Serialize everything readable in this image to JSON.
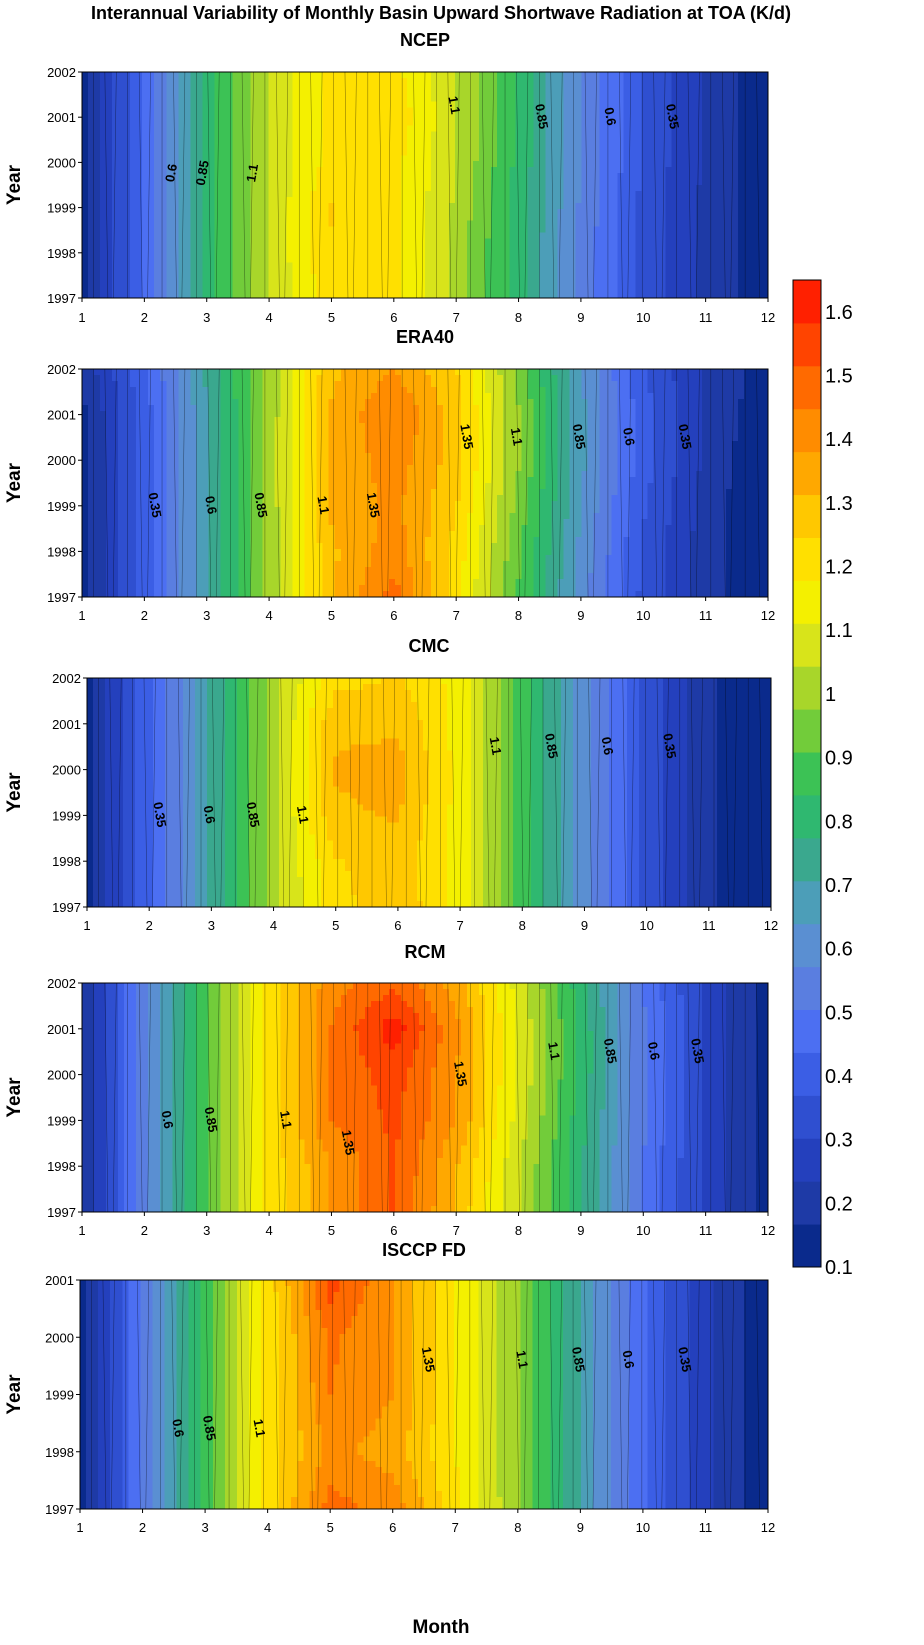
{
  "figure": {
    "title": "Interannual Variability of Monthly Basin Upward Shortwave Radiation at TOA (K/d)",
    "x_axis_label": "Month",
    "y_axis_label": "Year"
  },
  "colorbar": {
    "ticks": [
      "0.1",
      "0.2",
      "0.3",
      "0.4",
      "0.5",
      "0.6",
      "0.7",
      "0.8",
      "0.9",
      "1",
      "1.1",
      "1.2",
      "1.3",
      "1.4",
      "1.5",
      "1.6"
    ],
    "range": [
      0.1,
      1.65
    ],
    "colors": [
      "#0a2a8c",
      "#1e3aa6",
      "#2440bd",
      "#2f4fd0",
      "#3b5ee5",
      "#4c6ff2",
      "#5a7ee0",
      "#5a8fd2",
      "#4c9eb8",
      "#3aa88e",
      "#2fb870",
      "#3cc255",
      "#72cc3a",
      "#a8d62a",
      "#d8e41a",
      "#f4f000",
      "#ffe000",
      "#ffc800",
      "#ffa800",
      "#ff8c00",
      "#ff6a00",
      "#ff4400",
      "#ff2000"
    ]
  },
  "chart_data": [
    {
      "type": "heatmap",
      "title": "NCEP",
      "xlabel": "",
      "ylabel": "Year",
      "x_ticks": [
        "1",
        "2",
        "3",
        "4",
        "5",
        "6",
        "7",
        "8",
        "9",
        "10",
        "11",
        "12"
      ],
      "y_ticks": [
        "1997",
        "1998",
        "1999",
        "2000",
        "2001",
        "2002"
      ],
      "x": [
        1,
        2,
        3,
        4,
        5,
        6,
        7,
        8,
        9,
        10,
        11,
        12
      ],
      "y": [
        1997,
        1998,
        1999,
        2000,
        2001,
        2002
      ],
      "values": [
        [
          0.15,
          0.45,
          0.8,
          1.05,
          1.22,
          1.2,
          1.02,
          0.8,
          0.55,
          0.35,
          0.22,
          0.12
        ],
        [
          0.15,
          0.45,
          0.8,
          1.05,
          1.24,
          1.2,
          1.02,
          0.8,
          0.55,
          0.35,
          0.22,
          0.12
        ],
        [
          0.15,
          0.45,
          0.8,
          1.05,
          1.25,
          1.2,
          1.03,
          0.8,
          0.56,
          0.35,
          0.22,
          0.12
        ],
        [
          0.15,
          0.45,
          0.8,
          1.05,
          1.2,
          1.2,
          1.05,
          0.82,
          0.58,
          0.36,
          0.22,
          0.12
        ],
        [
          0.15,
          0.45,
          0.8,
          1.05,
          1.2,
          1.23,
          1.05,
          0.82,
          0.58,
          0.36,
          0.22,
          0.12
        ],
        [
          0.15,
          0.45,
          0.8,
          1.05,
          1.2,
          1.2,
          1.05,
          0.82,
          0.58,
          0.36,
          0.22,
          0.12
        ]
      ],
      "contour_labels": [
        "0.6",
        "0.85",
        "1.1",
        "1.1",
        "0.85",
        "0.6",
        "0.35"
      ]
    },
    {
      "type": "heatmap",
      "title": "ERA40",
      "xlabel": "",
      "ylabel": "Year",
      "x_ticks": [
        "1",
        "2",
        "3",
        "4",
        "5",
        "6",
        "7",
        "8",
        "9",
        "10",
        "11",
        "12"
      ],
      "y_ticks": [
        "1997",
        "1998",
        "1999",
        "2000",
        "2001",
        "2002"
      ],
      "x": [
        1,
        2,
        3,
        4,
        5,
        6,
        7,
        8,
        9,
        10,
        11,
        12
      ],
      "y": [
        1997,
        1998,
        1999,
        2000,
        2001,
        2002
      ],
      "values": [
        [
          0.15,
          0.4,
          0.7,
          1.0,
          1.3,
          1.48,
          1.2,
          0.9,
          0.6,
          0.35,
          0.2,
          0.1
        ],
        [
          0.15,
          0.4,
          0.7,
          1.0,
          1.3,
          1.42,
          1.22,
          0.92,
          0.62,
          0.36,
          0.2,
          0.1
        ],
        [
          0.15,
          0.4,
          0.7,
          1.0,
          1.32,
          1.4,
          1.25,
          0.95,
          0.64,
          0.38,
          0.2,
          0.1
        ],
        [
          0.15,
          0.4,
          0.7,
          1.0,
          1.32,
          1.42,
          1.28,
          0.98,
          0.66,
          0.4,
          0.22,
          0.1
        ],
        [
          0.15,
          0.4,
          0.7,
          1.0,
          1.32,
          1.45,
          1.28,
          0.98,
          0.66,
          0.4,
          0.22,
          0.12
        ],
        [
          0.18,
          0.42,
          0.72,
          1.0,
          1.3,
          1.38,
          1.25,
          0.95,
          0.64,
          0.38,
          0.22,
          0.14
        ]
      ],
      "contour_labels": [
        "0.35",
        "0.6",
        "0.85",
        "1.1",
        "1.35",
        "1.35",
        "1.1",
        "0.85",
        "0.6",
        "0.35"
      ]
    },
    {
      "type": "heatmap",
      "title": "CMC",
      "xlabel": "",
      "ylabel": "Year",
      "x_ticks": [
        "1",
        "2",
        "3",
        "4",
        "5",
        "6",
        "7",
        "8",
        "9",
        "10",
        "11",
        "12"
      ],
      "y_ticks": [
        "1997",
        "1998",
        "1999",
        "2000",
        "2001",
        "2002"
      ],
      "x": [
        1,
        2,
        3,
        4,
        5,
        6,
        7,
        8,
        9,
        10,
        11,
        12
      ],
      "y": [
        1997,
        1998,
        1999,
        2000,
        2001,
        2002
      ],
      "values": [
        [
          0.15,
          0.42,
          0.72,
          1.02,
          1.22,
          1.3,
          1.15,
          0.88,
          0.6,
          0.35,
          0.18,
          0.1
        ],
        [
          0.15,
          0.42,
          0.72,
          1.02,
          1.24,
          1.28,
          1.15,
          0.88,
          0.6,
          0.35,
          0.18,
          0.1
        ],
        [
          0.15,
          0.42,
          0.72,
          1.02,
          1.3,
          1.32,
          1.15,
          0.88,
          0.6,
          0.35,
          0.18,
          0.1
        ],
        [
          0.15,
          0.42,
          0.72,
          1.02,
          1.32,
          1.34,
          1.15,
          0.88,
          0.6,
          0.35,
          0.18,
          0.1
        ],
        [
          0.15,
          0.42,
          0.72,
          1.02,
          1.3,
          1.3,
          1.15,
          0.88,
          0.6,
          0.35,
          0.18,
          0.1
        ],
        [
          0.15,
          0.42,
          0.72,
          1.02,
          1.22,
          1.25,
          1.15,
          0.88,
          0.6,
          0.35,
          0.18,
          0.1
        ]
      ],
      "contour_labels": [
        "0.35",
        "0.6",
        "0.85",
        "1.1",
        "1.1",
        "0.85",
        "0.6",
        "0.35"
      ]
    },
    {
      "type": "heatmap",
      "title": "RCM",
      "xlabel": "",
      "ylabel": "Year",
      "x_ticks": [
        "1",
        "2",
        "3",
        "4",
        "5",
        "6",
        "7",
        "8",
        "9",
        "10",
        "11",
        "12"
      ],
      "y_ticks": [
        "1997",
        "1998",
        "1999",
        "2000",
        "2001",
        "2002"
      ],
      "x": [
        1,
        2,
        3,
        4,
        5,
        6,
        7,
        8,
        9,
        10,
        11,
        12
      ],
      "y": [
        1997,
        1998,
        1999,
        2000,
        2001,
        2002
      ],
      "values": [
        [
          0.15,
          0.55,
          0.9,
          1.2,
          1.38,
          1.52,
          1.3,
          1.05,
          0.78,
          0.5,
          0.28,
          0.14
        ],
        [
          0.15,
          0.55,
          0.9,
          1.2,
          1.38,
          1.52,
          1.32,
          1.05,
          0.78,
          0.5,
          0.28,
          0.14
        ],
        [
          0.15,
          0.55,
          0.9,
          1.2,
          1.45,
          1.53,
          1.38,
          1.08,
          0.8,
          0.52,
          0.28,
          0.14
        ],
        [
          0.15,
          0.55,
          0.9,
          1.2,
          1.45,
          1.55,
          1.38,
          1.1,
          0.82,
          0.52,
          0.28,
          0.14
        ],
        [
          0.15,
          0.55,
          0.9,
          1.2,
          1.45,
          1.62,
          1.4,
          1.1,
          0.82,
          0.52,
          0.28,
          0.14
        ],
        [
          0.15,
          0.55,
          0.9,
          1.2,
          1.42,
          1.5,
          1.35,
          1.08,
          0.8,
          0.5,
          0.28,
          0.14
        ]
      ],
      "contour_labels": [
        "0.6",
        "0.85",
        "1.1",
        "1.35",
        "1.35",
        "1.1",
        "0.85",
        "0.6",
        "0.35"
      ]
    },
    {
      "type": "heatmap",
      "title": "ISCCP FD",
      "xlabel": "Month",
      "ylabel": "Year",
      "x_ticks": [
        "1",
        "2",
        "3",
        "4",
        "5",
        "6",
        "7",
        "8",
        "9",
        "10",
        "11",
        "12"
      ],
      "y_ticks": [
        "1997",
        "1998",
        "1999",
        "2000",
        "2001"
      ],
      "x": [
        1,
        2,
        3,
        4,
        5,
        6,
        7,
        8,
        9,
        10,
        11,
        12
      ],
      "y": [
        1997,
        1998,
        1999,
        2000,
        2001
      ],
      "values": [
        [
          0.15,
          0.5,
          0.85,
          1.2,
          1.48,
          1.42,
          1.2,
          0.98,
          0.7,
          0.45,
          0.25,
          0.12
        ],
        [
          0.15,
          0.5,
          0.85,
          1.2,
          1.4,
          1.35,
          1.18,
          0.98,
          0.7,
          0.45,
          0.25,
          0.12
        ],
        [
          0.15,
          0.5,
          0.85,
          1.2,
          1.45,
          1.38,
          1.18,
          0.98,
          0.7,
          0.45,
          0.25,
          0.12
        ],
        [
          0.15,
          0.5,
          0.85,
          1.2,
          1.46,
          1.38,
          1.18,
          0.98,
          0.7,
          0.45,
          0.25,
          0.12
        ],
        [
          0.15,
          0.5,
          0.85,
          1.2,
          1.55,
          1.38,
          1.18,
          0.98,
          0.7,
          0.45,
          0.25,
          0.12
        ]
      ],
      "contour_labels": [
        "0.6",
        "0.85",
        "1.1",
        "1.35",
        "1.1",
        "0.85",
        "0.6",
        "0.35"
      ]
    }
  ]
}
